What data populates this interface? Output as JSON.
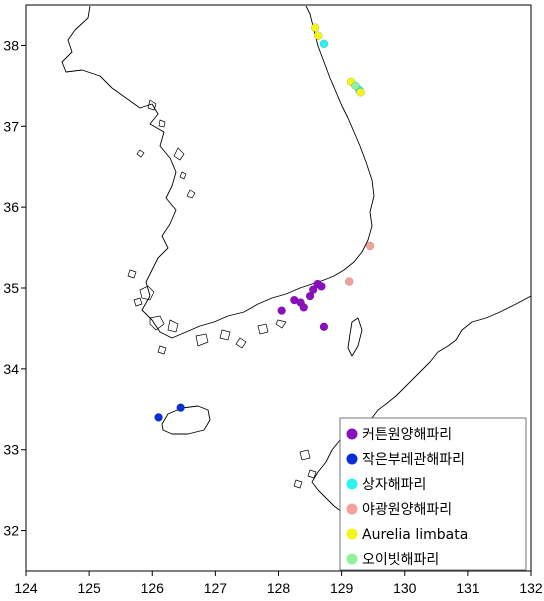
{
  "chart_data": {
    "type": "scatter",
    "title": "",
    "xlabel": "",
    "ylabel": "",
    "xlim": [
      124,
      132
    ],
    "ylim": [
      31.5,
      38.5
    ],
    "x_ticks": [
      124,
      125,
      126,
      127,
      128,
      129,
      130,
      131,
      132
    ],
    "y_ticks": [
      32,
      33,
      34,
      35,
      36,
      37,
      38
    ],
    "legend_position": "bottom-right",
    "series": [
      {
        "name": "커튼원양해파리",
        "color": "#8B0FBF",
        "points": [
          [
            128.05,
            34.72
          ],
          [
            128.25,
            34.85
          ],
          [
            128.35,
            34.82
          ],
          [
            128.4,
            34.76
          ],
          [
            128.5,
            34.9
          ],
          [
            128.55,
            34.98
          ],
          [
            128.62,
            35.05
          ],
          [
            128.68,
            35.02
          ],
          [
            128.72,
            34.52
          ]
        ]
      },
      {
        "name": "작은부레관해파리",
        "color": "#0B2FD6",
        "points": [
          [
            126.1,
            33.4
          ],
          [
            126.45,
            33.52
          ]
        ]
      },
      {
        "name": "상자해파리",
        "color": "#2EF2F2",
        "points": [
          [
            128.72,
            38.02
          ],
          [
            129.28,
            37.45
          ]
        ]
      },
      {
        "name": "야광원양해파리",
        "color": "#F2A29A",
        "points": [
          [
            129.12,
            35.08
          ],
          [
            129.45,
            35.52
          ]
        ]
      },
      {
        "name": "Aurelia limbata",
        "color": "#F5F51A",
        "points": [
          [
            128.58,
            38.22
          ],
          [
            128.63,
            38.12
          ],
          [
            129.15,
            37.55
          ],
          [
            129.3,
            37.42
          ]
        ]
      },
      {
        "name": "오이빗해파리",
        "color": "#8FF29A",
        "points": [
          [
            129.22,
            37.5
          ]
        ]
      }
    ]
  }
}
